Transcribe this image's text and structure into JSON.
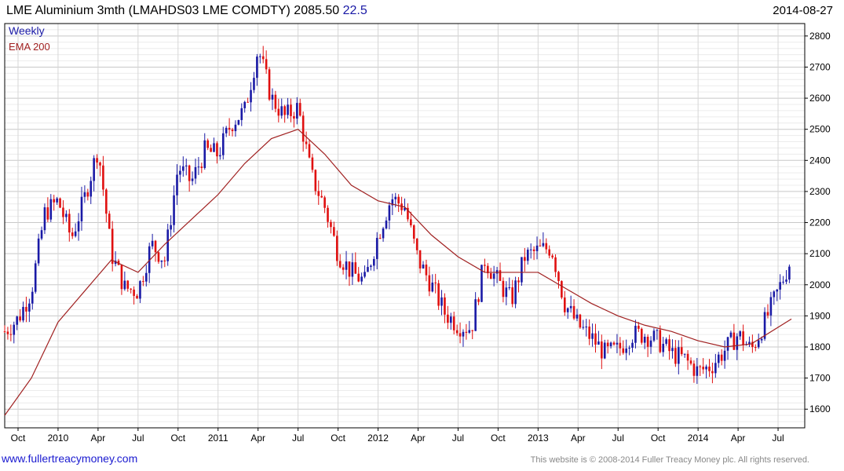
{
  "header": {
    "title": "LME Aluminium 3mth (LMAHDS03 LME COMDTY) 2085.50",
    "change": "22.5",
    "date": "2014-08-27"
  },
  "footer": {
    "site": "www.fullertreacymoney.com",
    "copyright": "This website is © 2008-2014 Fuller Treacy Money plc. All rights reserved."
  },
  "colors": {
    "up": "#1a1aa6",
    "down": "#e01010",
    "ema": "#a02020",
    "grid": "#d6d6d6",
    "frame": "#000000"
  },
  "chart_data": {
    "type": "line",
    "series": [
      {
        "name": "Weekly",
        "type": "candlestick",
        "color": "#1a1aa6",
        "x": [
          "2009-09",
          "2009-10",
          "2009-11",
          "2009-12",
          "2010-01",
          "2010-02",
          "2010-03",
          "2010-04",
          "2010-05",
          "2010-06",
          "2010-07",
          "2010-08",
          "2010-09",
          "2010-10",
          "2010-11",
          "2010-12",
          "2011-01",
          "2011-02",
          "2011-03",
          "2011-04",
          "2011-05",
          "2011-06",
          "2011-07",
          "2011-08",
          "2011-09",
          "2011-10",
          "2011-11",
          "2011-12",
          "2012-01",
          "2012-02",
          "2012-03",
          "2012-04",
          "2012-05",
          "2012-06",
          "2012-07",
          "2012-08",
          "2012-09",
          "2012-10",
          "2012-11",
          "2012-12",
          "2013-01",
          "2013-02",
          "2013-03",
          "2013-04",
          "2013-05",
          "2013-06",
          "2013-07",
          "2013-08",
          "2013-09",
          "2013-10",
          "2013-11",
          "2013-12",
          "2014-01",
          "2014-02",
          "2014-03",
          "2014-04",
          "2014-05",
          "2014-06",
          "2014-07",
          "2014-08"
        ],
        "values": [
          1850,
          1890,
          1980,
          2230,
          2270,
          2150,
          2280,
          2440,
          2100,
          1990,
          1980,
          2130,
          2080,
          2380,
          2330,
          2430,
          2420,
          2520,
          2560,
          2760,
          2600,
          2540,
          2570,
          2350,
          2250,
          2100,
          2040,
          2010,
          2160,
          2280,
          2250,
          2080,
          2000,
          1910,
          1870,
          1860,
          2080,
          2010,
          1950,
          2090,
          2110,
          2120,
          1940,
          1870,
          1830,
          1780,
          1790,
          1840,
          1840,
          1820,
          1780,
          1760,
          1720,
          1740,
          1790,
          1840,
          1790,
          1880,
          1980,
          2085
        ]
      },
      {
        "name": "EMA 200",
        "color": "#a02020",
        "x": [
          "2009-09",
          "2009-11",
          "2010-01",
          "2010-03",
          "2010-05",
          "2010-07",
          "2010-09",
          "2010-11",
          "2011-01",
          "2011-03",
          "2011-05",
          "2011-07",
          "2011-09",
          "2011-11",
          "2012-01",
          "2012-03",
          "2012-05",
          "2012-07",
          "2012-09",
          "2012-11",
          "2013-01",
          "2013-03",
          "2013-05",
          "2013-07",
          "2013-09",
          "2013-11",
          "2014-01",
          "2014-03",
          "2014-05",
          "2014-08"
        ],
        "values": [
          1580,
          1700,
          1880,
          1980,
          2080,
          2040,
          2130,
          2210,
          2290,
          2390,
          2470,
          2500,
          2420,
          2320,
          2270,
          2250,
          2160,
          2090,
          2040,
          2040,
          2040,
          1990,
          1940,
          1900,
          1870,
          1850,
          1820,
          1800,
          1810,
          1890
        ]
      }
    ],
    "title": "LME Aluminium 3mth (LMAHDS03 LME COMDTY) 2085.50 22.5",
    "xlabel": "",
    "ylabel": "",
    "ylim": [
      1540,
      2840
    ],
    "yticks": [
      1600,
      1700,
      1800,
      1900,
      2000,
      2100,
      2200,
      2300,
      2400,
      2500,
      2600,
      2700,
      2800
    ],
    "xticks": [
      {
        "label": "Oct",
        "date": "2009-10"
      },
      {
        "label": "2010",
        "date": "2010-01"
      },
      {
        "label": "Apr",
        "date": "2010-04"
      },
      {
        "label": "Jul",
        "date": "2010-07"
      },
      {
        "label": "Oct",
        "date": "2010-10"
      },
      {
        "label": "2011",
        "date": "2011-01"
      },
      {
        "label": "Apr",
        "date": "2011-04"
      },
      {
        "label": "Jul",
        "date": "2011-07"
      },
      {
        "label": "Oct",
        "date": "2011-10"
      },
      {
        "label": "2012",
        "date": "2012-01"
      },
      {
        "label": "Apr",
        "date": "2012-04"
      },
      {
        "label": "Jul",
        "date": "2012-07"
      },
      {
        "label": "Oct",
        "date": "2012-10"
      },
      {
        "label": "2013",
        "date": "2013-01"
      },
      {
        "label": "Apr",
        "date": "2013-04"
      },
      {
        "label": "Jul",
        "date": "2013-07"
      },
      {
        "label": "Oct",
        "date": "2013-10"
      },
      {
        "label": "2014",
        "date": "2014-01"
      },
      {
        "label": "Apr",
        "date": "2014-04"
      },
      {
        "label": "Jul",
        "date": "2014-07"
      }
    ],
    "xrange": [
      "2009-09",
      "2014-09"
    ],
    "legend": [
      "Weekly",
      "EMA 200"
    ],
    "legend_position": "top-left",
    "grid": true
  }
}
